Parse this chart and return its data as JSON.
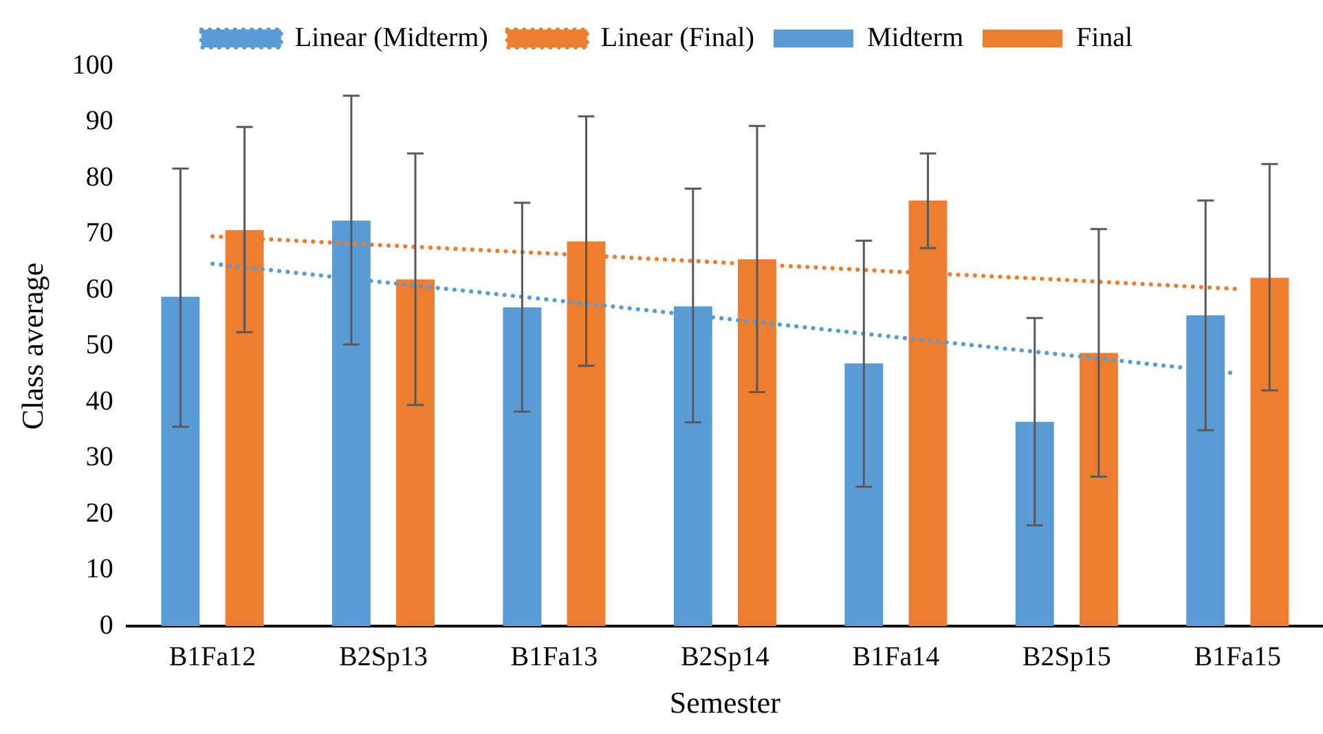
{
  "chart_data": {
    "type": "bar",
    "xlabel": "Semester",
    "ylabel": "Class average",
    "categories": [
      "B1Fa12",
      "B2Sp13",
      "B1Fa13",
      "B2Sp14",
      "B1Fa14",
      "B2Sp15",
      "B1Fa15"
    ],
    "series": [
      {
        "name": "Midterm",
        "color": "#5b9bd5",
        "values": [
          58.8,
          72.4,
          56.9,
          57.1,
          46.9,
          36.5,
          55.5
        ],
        "errors": [
          [
            35.6,
            81.7
          ],
          [
            50.3,
            94.7
          ],
          [
            38.3,
            75.6
          ],
          [
            36.4,
            78.1
          ],
          [
            24.9,
            68.8
          ],
          [
            18.0,
            55.0
          ],
          [
            35.0,
            76.0
          ]
        ]
      },
      {
        "name": "Final",
        "color": "#ed7d31",
        "values": [
          70.7,
          61.9,
          68.7,
          65.5,
          76.0,
          48.8,
          62.2
        ],
        "errors": [
          [
            52.5,
            89.1
          ],
          [
            39.5,
            84.4
          ],
          [
            46.5,
            91.0
          ],
          [
            41.8,
            89.3
          ],
          [
            67.5,
            84.4
          ],
          [
            26.7,
            70.9
          ],
          [
            42.1,
            82.5
          ]
        ]
      },
      {
        "name": "Linear (Midterm)",
        "type": "line",
        "line_style": "dotted",
        "marker": "none",
        "color": "#5b9bd5",
        "x": [
          "B1Fa12",
          "B2Sp13",
          "B1Fa13",
          "B2Sp14",
          "B1Fa14",
          "B2Sp15",
          "B1Fa15"
        ],
        "values": [
          64.7,
          61.4,
          58.2,
          54.9,
          51.6,
          48.4,
          45.1
        ]
      },
      {
        "name": "Linear (Final)",
        "type": "line",
        "line_style": "dotted",
        "marker": "none",
        "color": "#ed7d31",
        "x": [
          "B1Fa12",
          "B2Sp13",
          "B1Fa13",
          "B2Sp14",
          "B1Fa14",
          "B2Sp15",
          "B1Fa15"
        ],
        "values": [
          69.6,
          68.0,
          66.5,
          64.9,
          63.3,
          61.8,
          60.2
        ]
      }
    ],
    "ylim": [
      0,
      100
    ],
    "yticks": [
      0,
      10,
      20,
      30,
      40,
      50,
      60,
      70,
      80,
      90,
      100
    ],
    "grid": false,
    "legend": "top"
  }
}
